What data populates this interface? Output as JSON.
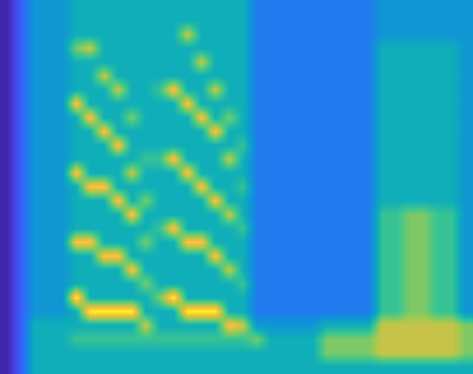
{
  "chart_data": {
    "type": "heatmap",
    "tick_labels": false,
    "cells": [
      [
        0,
        2,
        4,
        4,
        4,
        5,
        5,
        5,
        5,
        5,
        5,
        5,
        5,
        5,
        5,
        5,
        5,
        5,
        3,
        3,
        3,
        3,
        3,
        3,
        3,
        3,
        3,
        4,
        4,
        4,
        4,
        4,
        4,
        4
      ],
      [
        0,
        2,
        4,
        4,
        4,
        5,
        5,
        5,
        5,
        5,
        5,
        5,
        5,
        5,
        5,
        5,
        5,
        5,
        3,
        3,
        3,
        3,
        3,
        3,
        3,
        3,
        3,
        4,
        4,
        4,
        4,
        4,
        4,
        4
      ],
      [
        0,
        2,
        4,
        4,
        4,
        5,
        5,
        5,
        5,
        5,
        5,
        5,
        5,
        8,
        5,
        5,
        5,
        5,
        3,
        3,
        3,
        3,
        3,
        3,
        3,
        3,
        3,
        4,
        4,
        4,
        4,
        4,
        4,
        4
      ],
      [
        0,
        2,
        4,
        4,
        4,
        7,
        8,
        5,
        5,
        5,
        5,
        5,
        5,
        5,
        5,
        5,
        5,
        5,
        3,
        3,
        3,
        3,
        3,
        3,
        3,
        3,
        3,
        5,
        5,
        5,
        5,
        5,
        5,
        4
      ],
      [
        0,
        2,
        4,
        4,
        4,
        5,
        5,
        5,
        5,
        5,
        5,
        5,
        5,
        5,
        8,
        5,
        5,
        5,
        3,
        3,
        3,
        3,
        3,
        3,
        3,
        3,
        3,
        5,
        5,
        5,
        5,
        5,
        5,
        4
      ],
      [
        0,
        2,
        4,
        4,
        4,
        5,
        5,
        8,
        5,
        5,
        5,
        5,
        5,
        5,
        5,
        5,
        5,
        5,
        3,
        3,
        3,
        3,
        3,
        3,
        3,
        3,
        3,
        5,
        5,
        5,
        5,
        5,
        5,
        4
      ],
      [
        0,
        2,
        4,
        4,
        4,
        5,
        5,
        5,
        8,
        5,
        5,
        6,
        9,
        5,
        5,
        8,
        5,
        5,
        3,
        3,
        3,
        3,
        3,
        3,
        3,
        3,
        3,
        5,
        5,
        5,
        5,
        5,
        5,
        4
      ],
      [
        0,
        2,
        4,
        4,
        4,
        9,
        5,
        5,
        5,
        5,
        5,
        5,
        5,
        9,
        5,
        5,
        5,
        5,
        3,
        3,
        3,
        3,
        3,
        3,
        3,
        3,
        3,
        5,
        5,
        5,
        5,
        5,
        5,
        4
      ],
      [
        0,
        2,
        4,
        4,
        4,
        5,
        9,
        5,
        5,
        7,
        5,
        5,
        5,
        5,
        9,
        5,
        7,
        5,
        3,
        3,
        3,
        3,
        3,
        3,
        3,
        3,
        3,
        5,
        5,
        5,
        5,
        5,
        5,
        4
      ],
      [
        0,
        2,
        4,
        4,
        4,
        5,
        5,
        9,
        5,
        5,
        5,
        5,
        5,
        5,
        5,
        9,
        5,
        5,
        3,
        3,
        3,
        3,
        3,
        3,
        3,
        3,
        3,
        5,
        5,
        5,
        5,
        5,
        5,
        4
      ],
      [
        0,
        2,
        4,
        4,
        4,
        5,
        5,
        5,
        9,
        5,
        5,
        5,
        5,
        5,
        5,
        5,
        5,
        6,
        3,
        3,
        3,
        3,
        3,
        3,
        3,
        3,
        3,
        5,
        5,
        5,
        5,
        5,
        5,
        4
      ],
      [
        0,
        2,
        4,
        4,
        4,
        5,
        5,
        5,
        5,
        5,
        6,
        6,
        9,
        5,
        5,
        5,
        8,
        5,
        3,
        3,
        3,
        3,
        3,
        3,
        3,
        3,
        3,
        5,
        5,
        5,
        5,
        5,
        5,
        4
      ],
      [
        0,
        2,
        4,
        4,
        4,
        9,
        5,
        5,
        5,
        8,
        5,
        5,
        5,
        9,
        5,
        5,
        5,
        5,
        3,
        3,
        3,
        3,
        3,
        3,
        3,
        3,
        3,
        5,
        5,
        5,
        5,
        5,
        5,
        4
      ],
      [
        0,
        2,
        4,
        4,
        4,
        5,
        9,
        9,
        5,
        5,
        5,
        5,
        5,
        5,
        9,
        5,
        5,
        6,
        3,
        3,
        3,
        3,
        3,
        3,
        3,
        3,
        3,
        5,
        5,
        5,
        5,
        5,
        5,
        4
      ],
      [
        0,
        2,
        4,
        4,
        4,
        5,
        5,
        5,
        9,
        5,
        7,
        5,
        5,
        5,
        5,
        9,
        5,
        5,
        3,
        3,
        3,
        3,
        3,
        3,
        3,
        3,
        3,
        5,
        5,
        5,
        5,
        5,
        5,
        4
      ],
      [
        0,
        2,
        4,
        4,
        4,
        5,
        5,
        5,
        5,
        9,
        5,
        5,
        5,
        5,
        5,
        5,
        8,
        5,
        3,
        3,
        3,
        3,
        3,
        3,
        3,
        3,
        3,
        6,
        6,
        7,
        7,
        6,
        6,
        4
      ],
      [
        0,
        2,
        4,
        4,
        4,
        5,
        5,
        5,
        5,
        5,
        5,
        6,
        9,
        5,
        5,
        5,
        5,
        6,
        3,
        3,
        3,
        3,
        3,
        3,
        3,
        3,
        3,
        6,
        6,
        7,
        7,
        6,
        6,
        4
      ],
      [
        0,
        2,
        4,
        4,
        4,
        9,
        9,
        5,
        5,
        5,
        7,
        5,
        5,
        9,
        9,
        5,
        5,
        5,
        3,
        3,
        3,
        3,
        3,
        3,
        3,
        3,
        3,
        6,
        6,
        7,
        7,
        6,
        6,
        4
      ],
      [
        0,
        2,
        4,
        4,
        4,
        5,
        5,
        9,
        9,
        5,
        5,
        5,
        5,
        5,
        5,
        9,
        5,
        5,
        3,
        3,
        3,
        3,
        3,
        3,
        3,
        3,
        3,
        6,
        6,
        7,
        7,
        6,
        6,
        4
      ],
      [
        0,
        2,
        4,
        4,
        4,
        5,
        5,
        5,
        5,
        9,
        5,
        5,
        5,
        5,
        5,
        5,
        8,
        5,
        3,
        3,
        3,
        3,
        3,
        3,
        3,
        3,
        3,
        6,
        6,
        7,
        7,
        6,
        6,
        4
      ],
      [
        0,
        2,
        4,
        4,
        4,
        5,
        5,
        5,
        5,
        5,
        7,
        5,
        5,
        5,
        5,
        5,
        5,
        6,
        3,
        3,
        3,
        3,
        3,
        3,
        3,
        3,
        3,
        6,
        6,
        7,
        7,
        6,
        6,
        4
      ],
      [
        0,
        2,
        4,
        4,
        4,
        10,
        5,
        5,
        5,
        5,
        5,
        7,
        10,
        5,
        5,
        5,
        5,
        5,
        3,
        3,
        3,
        3,
        3,
        3,
        3,
        3,
        3,
        6,
        6,
        7,
        7,
        6,
        6,
        4
      ],
      [
        0,
        2,
        4,
        4,
        4,
        5,
        10,
        10,
        10,
        10,
        5,
        5,
        5,
        10,
        10,
        10,
        5,
        5,
        3,
        3,
        3,
        3,
        3,
        3,
        3,
        3,
        3,
        6,
        6,
        7,
        7,
        6,
        6,
        4
      ],
      [
        0,
        2,
        5,
        5,
        5,
        5,
        5,
        5,
        5,
        5,
        8,
        5,
        5,
        5,
        5,
        5,
        9,
        8,
        4,
        4,
        4,
        4,
        4,
        5,
        5,
        5,
        5,
        8,
        8,
        8,
        8,
        8,
        8,
        7
      ],
      [
        0,
        2,
        5,
        5,
        5,
        6,
        6,
        6,
        6,
        6,
        6,
        6,
        6,
        6,
        6,
        6,
        6,
        6,
        7,
        5,
        5,
        5,
        5,
        7,
        7,
        7,
        7,
        8,
        8,
        8,
        8,
        8,
        8,
        7
      ],
      [
        0,
        2,
        5,
        5,
        5,
        5,
        5,
        5,
        5,
        5,
        5,
        5,
        5,
        5,
        5,
        5,
        5,
        5,
        5,
        5,
        5,
        5,
        5,
        7,
        7,
        7,
        7,
        8,
        8,
        8,
        8,
        8,
        8,
        7
      ],
      [
        0,
        2,
        5,
        5,
        5,
        5,
        5,
        5,
        5,
        5,
        5,
        5,
        5,
        5,
        5,
        5,
        5,
        5,
        5,
        5,
        5,
        5,
        5,
        5,
        5,
        5,
        5,
        5,
        5,
        5,
        5,
        5,
        5,
        5
      ]
    ]
  }
}
